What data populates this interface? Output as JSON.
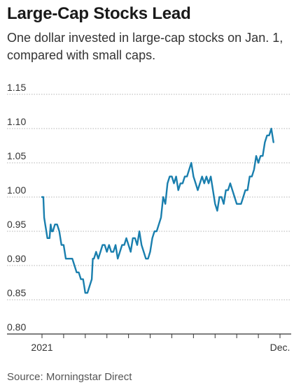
{
  "header": {
    "title": "Large-Cap Stocks Lead",
    "subtitle": "One dollar invested in large-cap stocks on Jan. 1, compared with small caps."
  },
  "footer": {
    "source": "Source: Morningstar Direct"
  },
  "colors": {
    "line": "#1a7fae",
    "grid": "#9a9a9a",
    "axis": "#333333"
  },
  "chart_data": {
    "type": "line",
    "title": "Large-Cap Stocks Lead",
    "xlabel": "",
    "ylabel": "",
    "ylim": [
      0.8,
      1.15
    ],
    "yticks": [
      "1.15",
      "1.10",
      "1.05",
      "1.00",
      "0.95",
      "0.90",
      "0.85",
      "0.80"
    ],
    "xticks": [
      {
        "label": "2021",
        "x": 0
      },
      {
        "label": "Dec.",
        "x": 11
      }
    ],
    "xlim": [
      0,
      11.5
    ],
    "grid": true,
    "series": [
      {
        "values": [
          [
            0.0,
            1.0
          ],
          [
            0.06,
            1.0
          ],
          [
            0.1,
            0.97
          ],
          [
            0.15,
            0.96
          ],
          [
            0.2,
            0.95
          ],
          [
            0.25,
            0.94
          ],
          [
            0.35,
            0.94
          ],
          [
            0.4,
            0.96
          ],
          [
            0.45,
            0.95
          ],
          [
            0.5,
            0.95
          ],
          [
            0.6,
            0.96
          ],
          [
            0.7,
            0.96
          ],
          [
            0.8,
            0.95
          ],
          [
            0.9,
            0.93
          ],
          [
            1.0,
            0.93
          ],
          [
            1.1,
            0.91
          ],
          [
            1.3,
            0.91
          ],
          [
            1.4,
            0.91
          ],
          [
            1.5,
            0.9
          ],
          [
            1.6,
            0.89
          ],
          [
            1.7,
            0.89
          ],
          [
            1.8,
            0.88
          ],
          [
            1.9,
            0.88
          ],
          [
            1.95,
            0.87
          ],
          [
            2.0,
            0.86
          ],
          [
            2.1,
            0.86
          ],
          [
            2.2,
            0.87
          ],
          [
            2.3,
            0.88
          ],
          [
            2.35,
            0.91
          ],
          [
            2.4,
            0.91
          ],
          [
            2.5,
            0.92
          ],
          [
            2.6,
            0.91
          ],
          [
            2.7,
            0.92
          ],
          [
            2.8,
            0.93
          ],
          [
            2.9,
            0.93
          ],
          [
            3.0,
            0.92
          ],
          [
            3.1,
            0.93
          ],
          [
            3.2,
            0.92
          ],
          [
            3.3,
            0.92
          ],
          [
            3.4,
            0.93
          ],
          [
            3.5,
            0.91
          ],
          [
            3.6,
            0.92
          ],
          [
            3.7,
            0.93
          ],
          [
            3.8,
            0.93
          ],
          [
            3.9,
            0.94
          ],
          [
            4.0,
            0.93
          ],
          [
            4.1,
            0.92
          ],
          [
            4.2,
            0.94
          ],
          [
            4.3,
            0.94
          ],
          [
            4.4,
            0.93
          ],
          [
            4.5,
            0.95
          ],
          [
            4.6,
            0.93
          ],
          [
            4.7,
            0.92
          ],
          [
            4.8,
            0.91
          ],
          [
            4.9,
            0.91
          ],
          [
            5.0,
            0.92
          ],
          [
            5.1,
            0.94
          ],
          [
            5.2,
            0.95
          ],
          [
            5.3,
            0.95
          ],
          [
            5.4,
            0.96
          ],
          [
            5.5,
            0.97
          ],
          [
            5.6,
            1.0
          ],
          [
            5.7,
            0.99
          ],
          [
            5.8,
            1.02
          ],
          [
            5.9,
            1.03
          ],
          [
            6.0,
            1.03
          ],
          [
            6.1,
            1.02
          ],
          [
            6.2,
            1.03
          ],
          [
            6.3,
            1.01
          ],
          [
            6.4,
            1.02
          ],
          [
            6.5,
            1.02
          ],
          [
            6.6,
            1.03
          ],
          [
            6.7,
            1.03
          ],
          [
            6.8,
            1.04
          ],
          [
            6.9,
            1.05
          ],
          [
            7.0,
            1.03
          ],
          [
            7.1,
            1.02
          ],
          [
            7.2,
            1.01
          ],
          [
            7.3,
            1.02
          ],
          [
            7.4,
            1.03
          ],
          [
            7.5,
            1.02
          ],
          [
            7.6,
            1.03
          ],
          [
            7.7,
            1.02
          ],
          [
            7.8,
            1.03
          ],
          [
            7.9,
            1.01
          ],
          [
            8.0,
            0.99
          ],
          [
            8.1,
            0.98
          ],
          [
            8.2,
            1.0
          ],
          [
            8.3,
            1.0
          ],
          [
            8.4,
            0.99
          ],
          [
            8.5,
            1.01
          ],
          [
            8.6,
            1.01
          ],
          [
            8.7,
            1.02
          ],
          [
            8.8,
            1.01
          ],
          [
            8.9,
            1.0
          ],
          [
            9.0,
            0.99
          ],
          [
            9.1,
            0.99
          ],
          [
            9.2,
            0.99
          ],
          [
            9.3,
            1.0
          ],
          [
            9.4,
            1.01
          ],
          [
            9.5,
            1.01
          ],
          [
            9.6,
            1.03
          ],
          [
            9.7,
            1.03
          ],
          [
            9.8,
            1.04
          ],
          [
            9.9,
            1.06
          ],
          [
            10.0,
            1.05
          ],
          [
            10.1,
            1.06
          ],
          [
            10.2,
            1.06
          ],
          [
            10.3,
            1.08
          ],
          [
            10.4,
            1.09
          ],
          [
            10.5,
            1.09
          ],
          [
            10.6,
            1.1
          ],
          [
            10.7,
            1.08
          ]
        ]
      }
    ]
  }
}
